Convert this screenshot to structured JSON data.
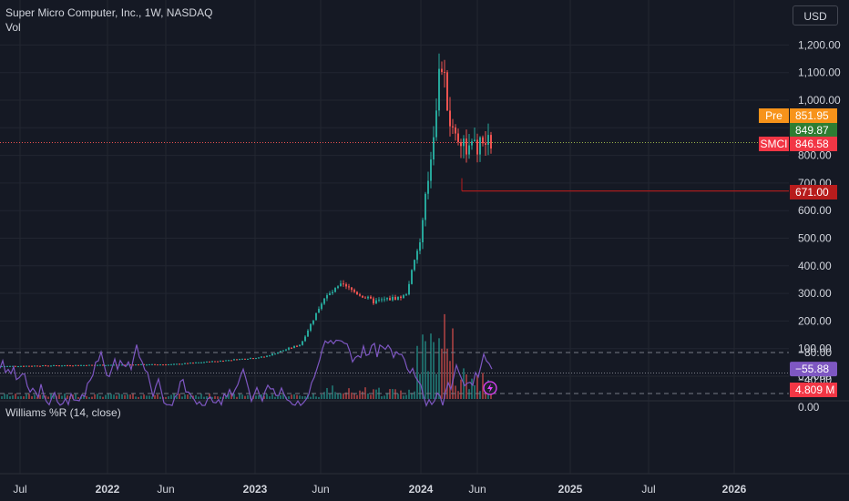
{
  "header": {
    "symbol_title": "Super Micro Computer, Inc., 1W, NASDAQ",
    "volume_label": "Vol",
    "currency": "USD"
  },
  "price_axis": {
    "ticks": [
      "1,200.00",
      "1,100.00",
      "1,000.00",
      "900.00",
      "800.00",
      "700.00",
      "600.00",
      "500.00",
      "400.00",
      "300.00",
      "200.00",
      "100.00",
      "0.0000"
    ],
    "tick_values": [
      1200,
      1100,
      1000,
      900,
      800,
      700,
      600,
      500,
      400,
      300,
      200,
      100,
      0
    ]
  },
  "price_labels": {
    "pre_tag": "Pre",
    "pre_value": "851.95",
    "green_value": "849.87",
    "symbol_tag": "SMCI",
    "last_value": "846.58",
    "support_value": "671.00",
    "volume_value": "4.809 M"
  },
  "time_axis": {
    "labels": [
      "Jul",
      "2022",
      "Jun",
      "2023",
      "Jun",
      "2024",
      "Jun",
      "2025",
      "Jul",
      "2026"
    ]
  },
  "indicator": {
    "title": "Williams %R (14, close)",
    "ticks": [
      "0.00",
      "−40.00",
      "−80.00"
    ],
    "tick_values": [
      0,
      -40,
      -80
    ],
    "band_upper": -20,
    "band_lower": -80,
    "current_value": "−55.88",
    "line_color": "#7e57c2"
  },
  "colors": {
    "up": "#26a69a",
    "down": "#ef5350",
    "pre": "#f7931a",
    "green_tag": "#2e7d32",
    "last_tag": "#f23645",
    "support": "#b71c1c"
  },
  "chart_data": {
    "type": "candlestick",
    "title": "Super Micro Computer, Inc., 1W, NASDAQ",
    "x": [
      "2021-07",
      "2021-10",
      "2022-01",
      "2022-04",
      "2022-06",
      "2022-09",
      "2022-12",
      "2023-03",
      "2023-06",
      "2023-07",
      "2023-09",
      "2023-11",
      "2024-01",
      "2024-02",
      "2024-03",
      "2024-04",
      "2024-05",
      "2024-06"
    ],
    "series": [
      {
        "name": "SMCI",
        "close": [
          36,
          38,
          40,
          42,
          43,
          55,
          70,
          115,
          280,
          330,
          270,
          290,
          500,
          800,
          1150,
          900,
          820,
          846.58
        ]
      },
      {
        "name": "Vol",
        "values": [
          3,
          3,
          4,
          4,
          5,
          6,
          8,
          10,
          15,
          18,
          14,
          15,
          35,
          60,
          55,
          30,
          25,
          20
        ]
      }
    ],
    "ylim": [
      0,
      1250
    ],
    "williams_r": [
      -30,
      -70,
      -20,
      -60,
      -85,
      -10,
      -40,
      -75,
      -5,
      -60,
      -30,
      -80,
      -10,
      -5,
      -30,
      -70,
      -85,
      -55.88
    ],
    "grid": true
  }
}
